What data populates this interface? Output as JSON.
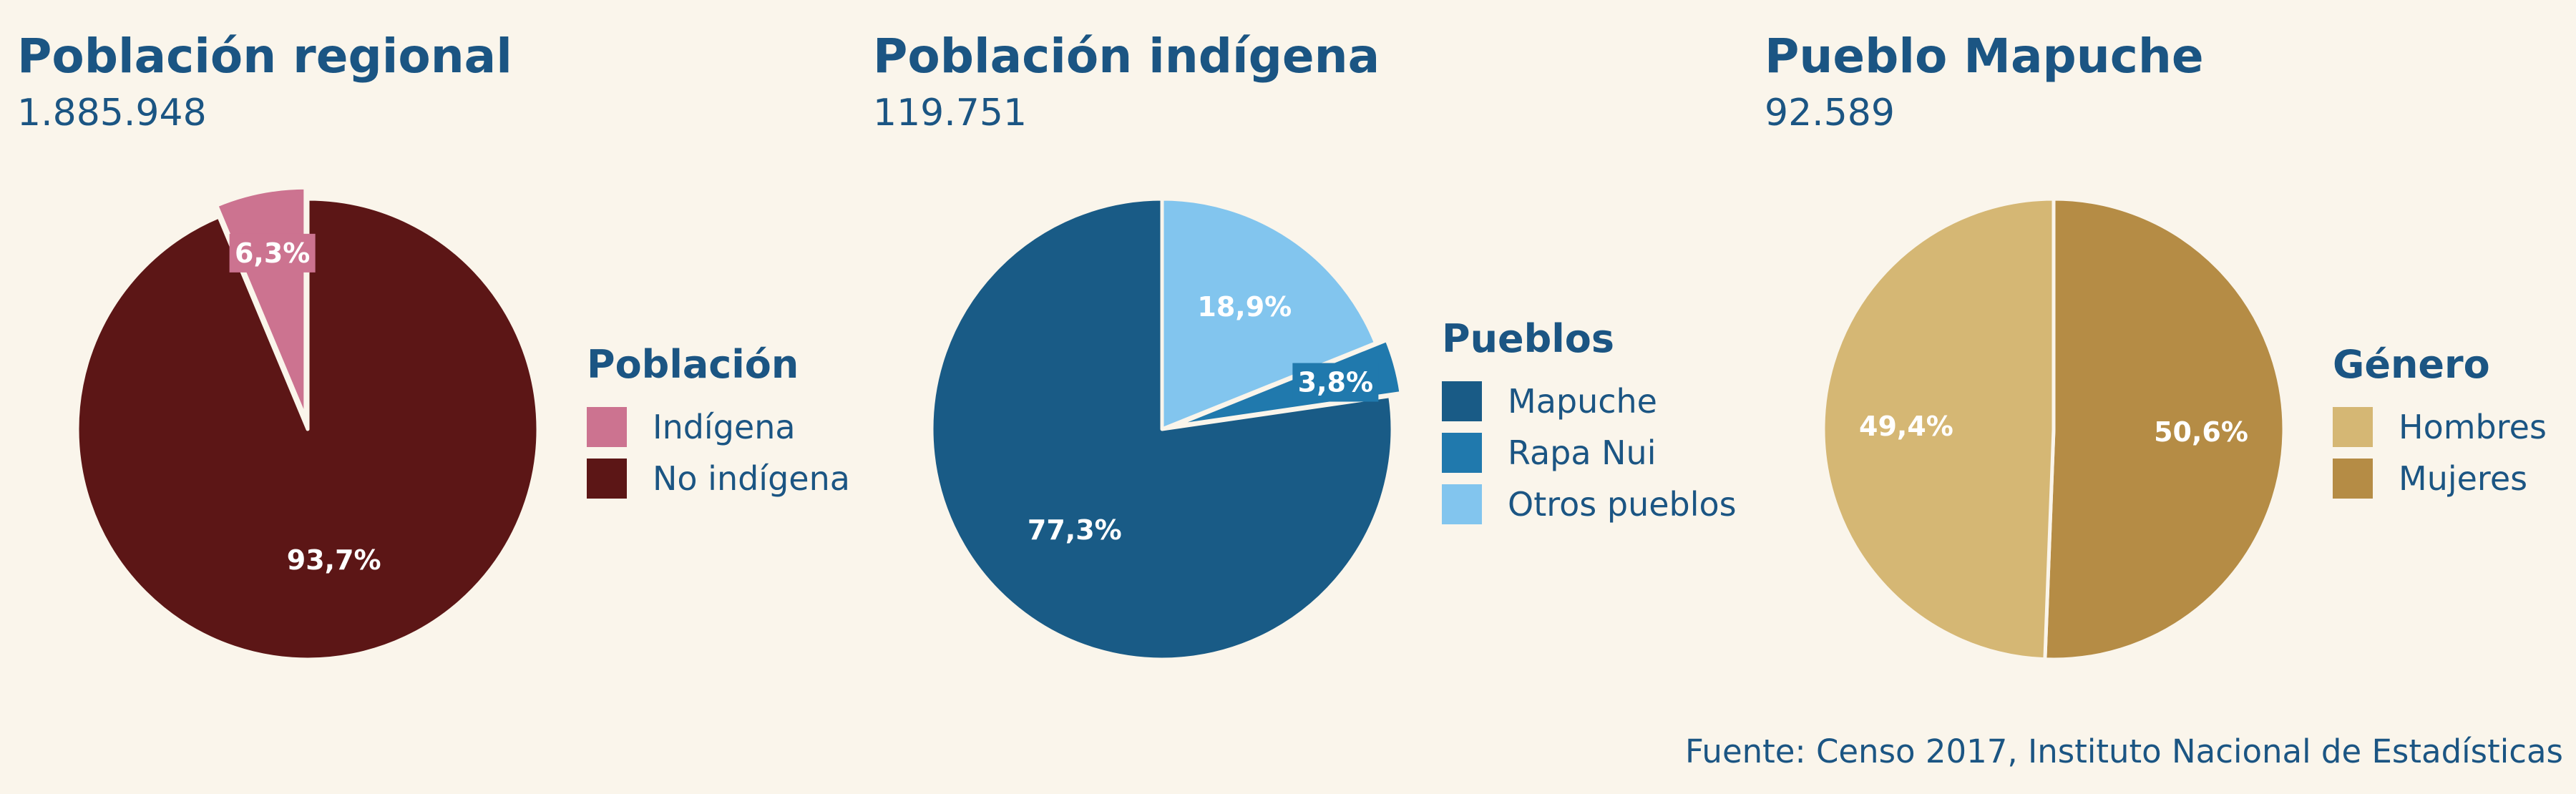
{
  "chart_data": [
    {
      "type": "pie",
      "title": "Población regional",
      "total": "1.885.948",
      "legend_title": "Población",
      "start_angle": -22.68,
      "slices": [
        {
          "label": "Indígena",
          "value": 6.3,
          "display": "6,3%",
          "color": "#cc7390",
          "exploded": true,
          "label_box": true
        },
        {
          "label": "No indígena",
          "value": 93.7,
          "display": "93,7%",
          "color": "#5c1616",
          "exploded": false,
          "label_box": false
        }
      ]
    },
    {
      "type": "pie",
      "title": "Población indígena",
      "total": "119.751",
      "legend_title": "Pueblos",
      "start_angle": 0,
      "slices": [
        {
          "label": "Otros pueblos",
          "value": 18.9,
          "display": "18,9%",
          "color": "#82c5ee",
          "exploded": false,
          "label_box": false
        },
        {
          "label": "Rapa Nui",
          "value": 3.8,
          "display": "3,8%",
          "color": "#2079ad",
          "exploded": true,
          "label_box": true
        },
        {
          "label": "Mapuche",
          "value": 77.3,
          "display": "77,3%",
          "color": "#195b86",
          "exploded": false,
          "label_box": false
        }
      ],
      "legend_order": [
        "Mapuche",
        "Rapa Nui",
        "Otros pueblos"
      ]
    },
    {
      "type": "pie",
      "title": "Pueblo Mapuche",
      "total": "92.589",
      "legend_title": "Género",
      "start_angle": 0,
      "slices": [
        {
          "label": "Mujeres",
          "value": 50.6,
          "display": "50,6%",
          "color": "#b58c45",
          "exploded": false,
          "label_box": false
        },
        {
          "label": "Hombres",
          "value": 49.4,
          "display": "49,4%",
          "color": "#d5b774",
          "exploded": false,
          "label_box": false
        }
      ],
      "legend_order": [
        "Hombres",
        "Mujeres"
      ]
    }
  ],
  "source": "Fuente: Censo 2017, Instituto Nacional de Estadísticas"
}
